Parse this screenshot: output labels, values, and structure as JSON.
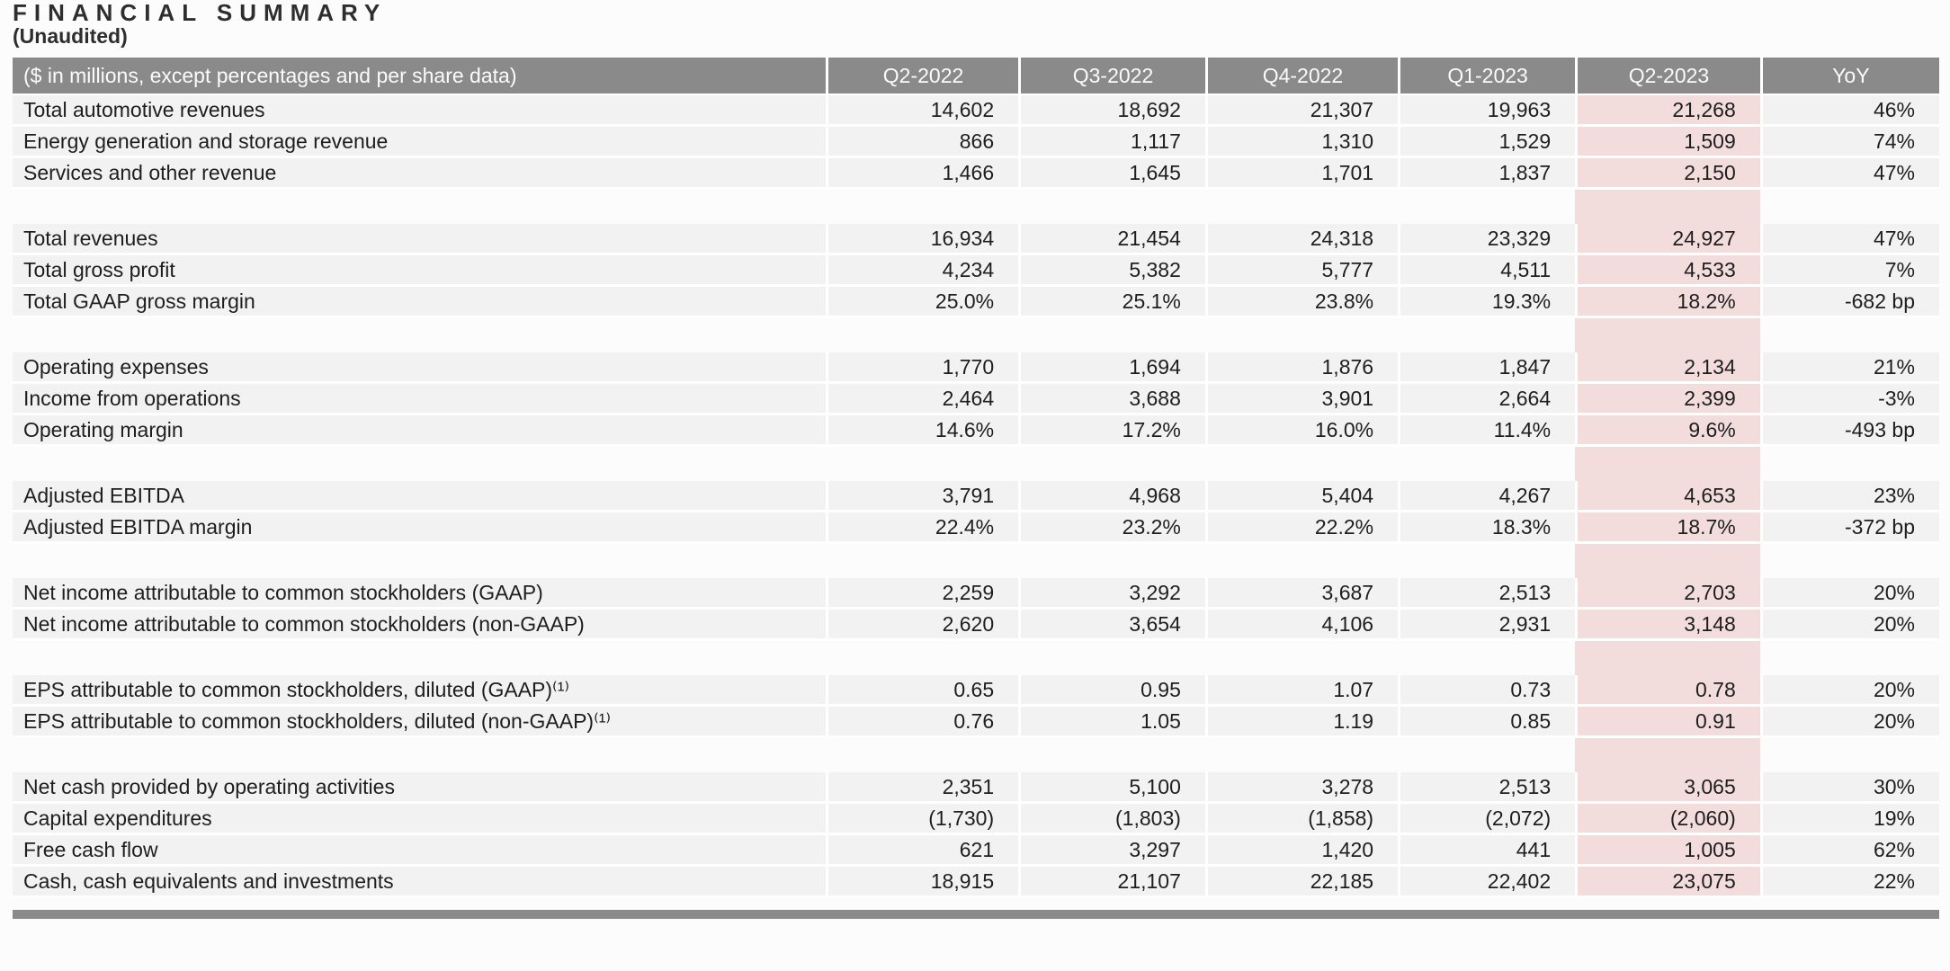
{
  "title": "FINANCIAL SUMMARY",
  "subtitle": "(Unaudited)",
  "colors": {
    "header_bg": "#8a8a8a",
    "header_text": "#fbfbfb",
    "row_bg": "#f2f2f2",
    "highlight_bg": "#f3dcdc",
    "text": "#1e1e1e",
    "page_bg": "#fcfcfc"
  },
  "table": {
    "columns": [
      "($ in millions, except percentages and per share data)",
      "Q2-2022",
      "Q3-2022",
      "Q4-2022",
      "Q1-2023",
      "Q2-2023",
      "YoY"
    ],
    "highlight_column": "Q2-2023",
    "highlight_col_index": 5,
    "sections": [
      {
        "rows": [
          {
            "label": "Total automotive revenues",
            "values": [
              "14,602",
              "18,692",
              "21,307",
              "19,963",
              "21,268",
              "46%"
            ]
          },
          {
            "label": "Energy generation and storage revenue",
            "values": [
              "866",
              "1,117",
              "1,310",
              "1,529",
              "1,509",
              "74%"
            ]
          },
          {
            "label": "Services and other revenue",
            "values": [
              "1,466",
              "1,645",
              "1,701",
              "1,837",
              "2,150",
              "47%"
            ]
          }
        ]
      },
      {
        "rows": [
          {
            "label": "Total revenues",
            "values": [
              "16,934",
              "21,454",
              "24,318",
              "23,329",
              "24,927",
              "47%"
            ]
          },
          {
            "label": "Total gross profit",
            "values": [
              "4,234",
              "5,382",
              "5,777",
              "4,511",
              "4,533",
              "7%"
            ]
          },
          {
            "label": "Total GAAP gross margin",
            "values": [
              "25.0%",
              "25.1%",
              "23.8%",
              "19.3%",
              "18.2%",
              "-682 bp"
            ]
          }
        ]
      },
      {
        "rows": [
          {
            "label": "Operating expenses",
            "values": [
              "1,770",
              "1,694",
              "1,876",
              "1,847",
              "2,134",
              "21%"
            ]
          },
          {
            "label": "Income from operations",
            "values": [
              "2,464",
              "3,688",
              "3,901",
              "2,664",
              "2,399",
              "-3%"
            ]
          },
          {
            "label": "Operating margin",
            "values": [
              "14.6%",
              "17.2%",
              "16.0%",
              "11.4%",
              "9.6%",
              "-493 bp"
            ]
          }
        ]
      },
      {
        "rows": [
          {
            "label": "Adjusted EBITDA",
            "values": [
              "3,791",
              "4,968",
              "5,404",
              "4,267",
              "4,653",
              "23%"
            ]
          },
          {
            "label": "Adjusted EBITDA margin",
            "values": [
              "22.4%",
              "23.2%",
              "22.2%",
              "18.3%",
              "18.7%",
              "-372 bp"
            ]
          }
        ]
      },
      {
        "rows": [
          {
            "label": "Net income attributable to common stockholders (GAAP)",
            "values": [
              "2,259",
              "3,292",
              "3,687",
              "2,513",
              "2,703",
              "20%"
            ]
          },
          {
            "label": "Net income attributable to common stockholders (non-GAAP)",
            "values": [
              "2,620",
              "3,654",
              "4,106",
              "2,931",
              "3,148",
              "20%"
            ]
          }
        ]
      },
      {
        "rows": [
          {
            "label": "EPS attributable to common stockholders, diluted (GAAP)⁽¹⁾",
            "values": [
              "0.65",
              "0.95",
              "1.07",
              "0.73",
              "0.78",
              "20%"
            ]
          },
          {
            "label": "EPS attributable to common stockholders, diluted (non-GAAP)⁽¹⁾",
            "values": [
              "0.76",
              "1.05",
              "1.19",
              "0.85",
              "0.91",
              "20%"
            ]
          }
        ]
      },
      {
        "rows": [
          {
            "label": "Net cash provided by operating activities",
            "values": [
              "2,351",
              "5,100",
              "3,278",
              "2,513",
              "3,065",
              "30%"
            ]
          },
          {
            "label": "Capital expenditures",
            "values": [
              "(1,730)",
              "(1,803)",
              "(1,858)",
              "(2,072)",
              "(2,060)",
              "19%"
            ]
          },
          {
            "label": "Free cash flow",
            "values": [
              "621",
              "3,297",
              "1,420",
              "441",
              "1,005",
              "62%"
            ]
          },
          {
            "label": "Cash, cash equivalents and investments",
            "values": [
              "18,915",
              "21,107",
              "22,185",
              "22,402",
              "23,075",
              "22%"
            ]
          }
        ]
      }
    ]
  }
}
